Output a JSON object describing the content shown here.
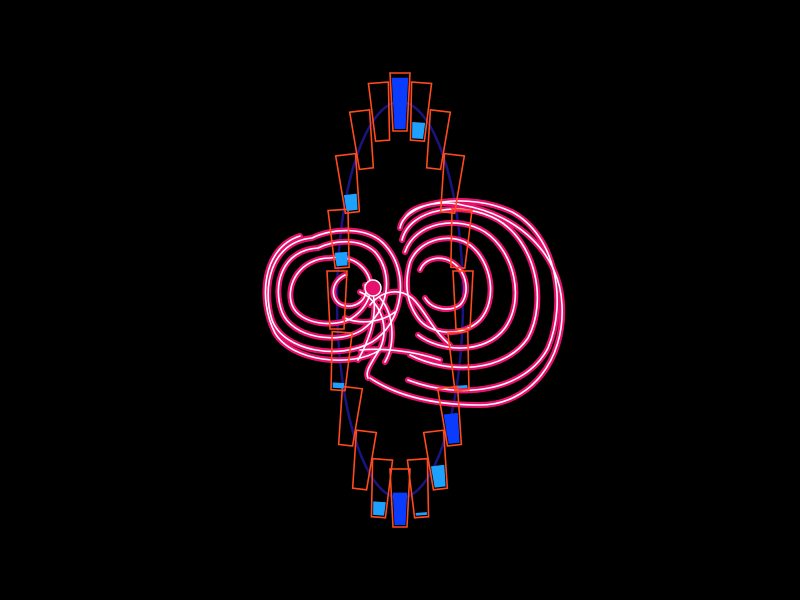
{
  "scene": {
    "background": "#000000",
    "colors": {
      "cup_outline": "#ff4a1c",
      "fill_deep": "#0a3cff",
      "fill_light": "#1ea0ff",
      "ring_track": "#1a1480",
      "trail_outer": "#e8106e",
      "trail_inner": "#ffffff",
      "ball": "#e8106e"
    },
    "cups": [
      {
        "fill": 0.95
      },
      {
        "fill": 0.3
      },
      {
        "fill": 0.0
      },
      {
        "fill": 0.0
      },
      {
        "fill": 0.0
      },
      {
        "fill": 0.0
      },
      {
        "fill": 0.05
      },
      {
        "fill": 0.55
      },
      {
        "fill": 0.4
      },
      {
        "fill": 0.05
      },
      {
        "fill": 0.6
      },
      {
        "fill": 0.25
      },
      {
        "fill": 0.0
      },
      {
        "fill": 0.0
      },
      {
        "fill": 0.1
      },
      {
        "fill": 0.0
      },
      {
        "fill": 0.25
      },
      {
        "fill": 0.3
      },
      {
        "fill": 0.0
      },
      {
        "fill": 0.0
      }
    ]
  }
}
